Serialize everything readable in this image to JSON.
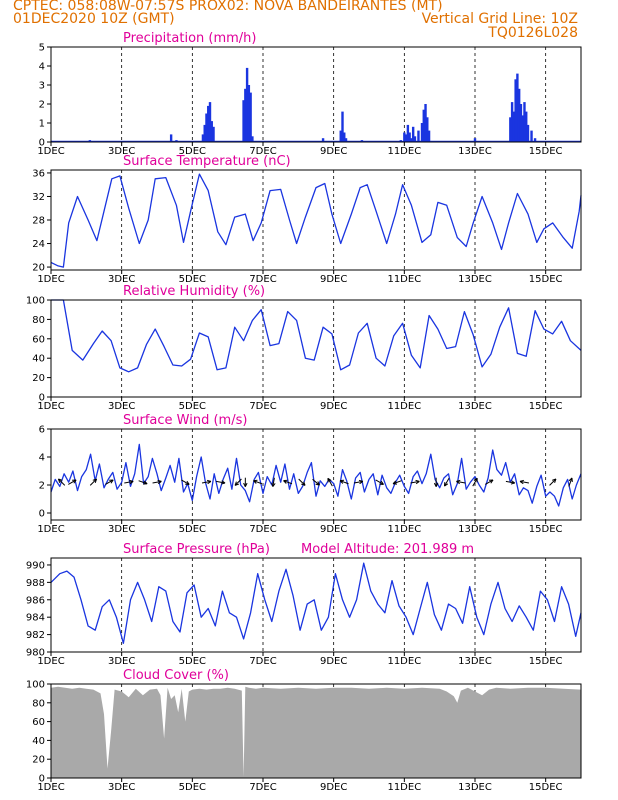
{
  "header": {
    "line1_left": "CPTEC:   058:08W-07:57S   PROX02: NOVA BANDEIRANTES (MT)",
    "line2_left": "01DEC2020 10Z (GMT)",
    "line2_right": "Vertical Grid Line: 10Z",
    "line3_right": "TQ0126L028"
  },
  "colors": {
    "header": "#e07000",
    "panel_title": "#e0009a",
    "series": "#1a35e0",
    "cloud": "#a9a9a9",
    "wind_arrow": "#000000"
  },
  "x_tick_labels": [
    "1DEC",
    "3DEC",
    "5DEC",
    "7DEC",
    "9DEC",
    "11DEC",
    "13DEC",
    "15DEC"
  ],
  "x_tick_days": [
    1,
    3,
    5,
    7,
    9,
    11,
    13,
    15
  ],
  "x_range_days": [
    1,
    16
  ],
  "model_altitude_label": "Model Altitude: 201.989 m",
  "chart_data": [
    {
      "type": "bar",
      "title": "Precipitation (mm/h)",
      "ylim": [
        0,
        5
      ],
      "yticks": [
        0,
        1,
        2,
        3,
        4,
        5
      ],
      "x": [
        1.9,
        2.1,
        2.2,
        2.4,
        4.4,
        4.55,
        5.3,
        5.35,
        5.4,
        5.45,
        5.5,
        5.55,
        5.6,
        6.45,
        6.5,
        6.55,
        6.6,
        6.65,
        6.7,
        8.7,
        9.2,
        9.25,
        9.3,
        9.35,
        9.8,
        9.9,
        10.9,
        11.0,
        11.05,
        11.1,
        11.15,
        11.2,
        11.25,
        11.3,
        11.4,
        11.5,
        11.55,
        11.6,
        11.65,
        11.7,
        13.0,
        13.1,
        14.0,
        14.05,
        14.1,
        14.15,
        14.2,
        14.25,
        14.3,
        14.35,
        14.4,
        14.45,
        14.5,
        14.6,
        14.7
      ],
      "values": [
        0.05,
        0.1,
        0.05,
        0.05,
        0.4,
        0.1,
        0.4,
        0.9,
        1.5,
        1.9,
        2.1,
        1.1,
        0.8,
        2.2,
        2.8,
        3.9,
        3.0,
        2.6,
        0.3,
        0.2,
        0.6,
        1.6,
        0.5,
        0.2,
        0.1,
        0.05,
        0.1,
        0.5,
        0.4,
        0.9,
        0.5,
        0.2,
        0.8,
        0.3,
        0.6,
        1.0,
        1.7,
        2.0,
        1.3,
        0.6,
        0.2,
        0.05,
        1.3,
        2.1,
        1.6,
        3.3,
        3.6,
        2.8,
        2.0,
        1.4,
        2.1,
        1.6,
        0.9,
        0.6,
        0.2
      ]
    },
    {
      "type": "line",
      "title": "Surface Temperature (nC)",
      "ylim": [
        19.5,
        36.5
      ],
      "yticks": [
        20,
        24,
        28,
        32,
        36
      ],
      "x": [
        1.0,
        1.2,
        1.35,
        1.5,
        1.75,
        2.05,
        2.3,
        2.5,
        2.72,
        2.95,
        3.2,
        3.5,
        3.75,
        3.95,
        4.25,
        4.55,
        4.75,
        4.95,
        5.2,
        5.45,
        5.72,
        5.95,
        6.2,
        6.5,
        6.72,
        6.95,
        7.2,
        7.5,
        7.75,
        7.95,
        8.2,
        8.5,
        8.75,
        8.95,
        9.2,
        9.5,
        9.75,
        9.95,
        10.2,
        10.5,
        10.75,
        10.95,
        11.2,
        11.5,
        11.75,
        11.95,
        12.2,
        12.5,
        12.75,
        12.95,
        13.2,
        13.5,
        13.75,
        13.95,
        14.2,
        14.5,
        14.75,
        14.95,
        15.2,
        15.5,
        15.75,
        15.95,
        16.0
      ],
      "y": [
        20.8,
        20.2,
        20.0,
        27.5,
        32.0,
        28.0,
        24.5,
        29.5,
        35.0,
        35.5,
        30.0,
        24.0,
        28.0,
        35.0,
        35.2,
        30.5,
        24.2,
        29.5,
        35.8,
        33.0,
        26.0,
        23.8,
        28.5,
        29.0,
        24.5,
        27.5,
        33.0,
        33.2,
        28.0,
        24.0,
        28.5,
        33.5,
        34.2,
        29.0,
        24.0,
        29.0,
        33.5,
        34.0,
        29.5,
        24.0,
        29.0,
        34.0,
        30.5,
        24.2,
        25.5,
        31.0,
        30.5,
        25.0,
        23.5,
        27.5,
        32.0,
        27.5,
        23.0,
        27.5,
        32.5,
        29.0,
        24.2,
        26.5,
        27.5,
        25.0,
        23.2,
        29.5,
        32.2
      ]
    },
    {
      "type": "line",
      "title": "Relative Humidity (%)",
      "ylim": [
        0,
        100
      ],
      "yticks": [
        0,
        20,
        40,
        60,
        80,
        100
      ],
      "x": [
        1.0,
        1.35,
        1.6,
        1.9,
        2.2,
        2.45,
        2.7,
        2.95,
        3.2,
        3.45,
        3.7,
        3.95,
        4.2,
        4.45,
        4.7,
        4.95,
        5.2,
        5.45,
        5.7,
        5.95,
        6.2,
        6.45,
        6.7,
        6.95,
        7.2,
        7.45,
        7.7,
        7.95,
        8.2,
        8.45,
        8.7,
        8.95,
        9.2,
        9.45,
        9.7,
        9.95,
        10.2,
        10.45,
        10.7,
        10.95,
        11.2,
        11.45,
        11.7,
        11.95,
        12.2,
        12.45,
        12.7,
        12.95,
        13.2,
        13.45,
        13.7,
        13.95,
        14.2,
        14.45,
        14.7,
        14.95,
        15.2,
        15.45,
        15.7,
        16.0
      ],
      "y": [
        100,
        100,
        48,
        38,
        55,
        68,
        58,
        30,
        26,
        30,
        54,
        70,
        52,
        33,
        32,
        39,
        66,
        62,
        28,
        30,
        72,
        58,
        79,
        90,
        53,
        55,
        88,
        79,
        40,
        38,
        72,
        65,
        28,
        33,
        66,
        76,
        40,
        32,
        63,
        76,
        43,
        30,
        84,
        70,
        50,
        52,
        88,
        64,
        31,
        44,
        72,
        92,
        45,
        42,
        89,
        70,
        65,
        78,
        58,
        48
      ]
    },
    {
      "type": "line",
      "title": "Surface Wind (m/s)",
      "ylim": [
        -0.5,
        6
      ],
      "yticks": [
        0,
        2,
        4,
        6
      ],
      "x": [
        1.0,
        1.12,
        1.25,
        1.37,
        1.5,
        1.62,
        1.75,
        1.87,
        2.0,
        2.12,
        2.25,
        2.37,
        2.5,
        2.62,
        2.75,
        2.87,
        3.0,
        3.12,
        3.25,
        3.37,
        3.5,
        3.62,
        3.75,
        3.87,
        4.0,
        4.12,
        4.25,
        4.37,
        4.5,
        4.62,
        4.75,
        4.87,
        5.0,
        5.12,
        5.25,
        5.37,
        5.5,
        5.62,
        5.75,
        5.87,
        6.0,
        6.12,
        6.25,
        6.37,
        6.5,
        6.62,
        6.75,
        6.87,
        7.0,
        7.12,
        7.25,
        7.37,
        7.5,
        7.62,
        7.75,
        7.87,
        8.0,
        8.12,
        8.25,
        8.37,
        8.5,
        8.62,
        8.75,
        8.87,
        9.0,
        9.12,
        9.25,
        9.37,
        9.5,
        9.62,
        9.75,
        9.87,
        10.0,
        10.12,
        10.25,
        10.37,
        10.5,
        10.62,
        10.75,
        10.87,
        11.0,
        11.12,
        11.25,
        11.37,
        11.5,
        11.62,
        11.75,
        11.87,
        12.0,
        12.12,
        12.25,
        12.37,
        12.5,
        12.62,
        12.75,
        12.87,
        13.0,
        13.12,
        13.25,
        13.37,
        13.5,
        13.62,
        13.75,
        13.87,
        14.0,
        14.12,
        14.25,
        14.37,
        14.5,
        14.62,
        14.75,
        14.87,
        15.0,
        15.12,
        15.25,
        15.37,
        15.5,
        15.62,
        15.75,
        15.87,
        16.0
      ],
      "y": [
        1.5,
        2.4,
        1.9,
        2.8,
        2.2,
        3.0,
        1.6,
        2.6,
        3.1,
        4.2,
        2.3,
        3.5,
        1.8,
        2.4,
        2.9,
        1.7,
        2.2,
        3.6,
        1.9,
        2.8,
        4.9,
        2.1,
        2.6,
        3.9,
        2.8,
        1.6,
        2.5,
        3.4,
        2.2,
        3.9,
        1.5,
        2.1,
        0.9,
        2.6,
        4.0,
        2.2,
        1.0,
        2.8,
        1.4,
        2.4,
        3.2,
        1.7,
        3.9,
        2.0,
        1.6,
        0.8,
        2.4,
        2.9,
        1.4,
        2.6,
        2.0,
        3.4,
        2.2,
        3.5,
        1.7,
        2.8,
        1.4,
        1.9,
        2.9,
        3.6,
        1.2,
        2.3,
        1.9,
        2.4,
        2.1,
        1.2,
        3.1,
        2.3,
        1.0,
        2.5,
        2.9,
        1.5,
        2.4,
        2.8,
        1.3,
        2.7,
        1.8,
        1.4,
        2.2,
        2.7,
        1.9,
        1.4,
        2.6,
        3.0,
        2.1,
        2.8,
        4.2,
        2.4,
        1.8,
        2.5,
        2.8,
        1.3,
        2.1,
        3.9,
        1.7,
        2.2,
        2.6,
        2.0,
        1.5,
        2.5,
        4.5,
        3.1,
        2.7,
        3.6,
        2.2,
        2.8,
        1.3,
        1.8,
        1.6,
        0.7,
        1.9,
        2.7,
        1.2,
        1.5,
        1.2,
        0.5,
        1.8,
        2.4,
        1.0,
        2.0,
        2.8
      ],
      "arrows_x": [
        1.3,
        1.6,
        2.2,
        2.65,
        3.2,
        3.6,
        4.0,
        4.8,
        5.4,
        5.8,
        6.3,
        6.5,
        6.85,
        7.3,
        7.7,
        8.1,
        8.5,
        8.9,
        9.3,
        9.7,
        10.3,
        10.8,
        11.3,
        11.9,
        12.2,
        12.6,
        13.0,
        13.4,
        14.0,
        14.4,
        15.2,
        15.7
      ],
      "arrows_deg": [
        135,
        30,
        45,
        30,
        10,
        -20,
        10,
        -30,
        10,
        -10,
        -135,
        -90,
        160,
        -100,
        160,
        -45,
        -40,
        120,
        160,
        10,
        -30,
        -160,
        10,
        -90,
        -120,
        170,
        60,
        30,
        -10,
        170,
        45,
        70
      ]
    },
    {
      "type": "line",
      "title": "Surface Pressure (hPa)",
      "ylim": [
        980,
        990.8
      ],
      "yticks": [
        980,
        982,
        984,
        986,
        988,
        990
      ],
      "x": [
        1.0,
        1.25,
        1.45,
        1.65,
        1.85,
        2.05,
        2.25,
        2.45,
        2.65,
        2.85,
        3.05,
        3.25,
        3.45,
        3.65,
        3.85,
        4.05,
        4.25,
        4.45,
        4.65,
        4.85,
        5.05,
        5.25,
        5.45,
        5.65,
        5.85,
        6.05,
        6.25,
        6.45,
        6.65,
        6.85,
        7.05,
        7.25,
        7.45,
        7.65,
        7.85,
        8.05,
        8.25,
        8.45,
        8.65,
        8.85,
        9.05,
        9.25,
        9.45,
        9.65,
        9.85,
        10.05,
        10.25,
        10.45,
        10.65,
        10.85,
        11.05,
        11.25,
        11.45,
        11.65,
        11.85,
        12.05,
        12.25,
        12.45,
        12.65,
        12.85,
        13.05,
        13.25,
        13.45,
        13.65,
        13.85,
        14.05,
        14.25,
        14.45,
        14.65,
        14.85,
        15.05,
        15.25,
        15.45,
        15.65,
        15.85,
        16.0
      ],
      "y": [
        988.0,
        989.0,
        989.3,
        988.6,
        986.0,
        983.0,
        982.5,
        985.2,
        986.0,
        984.0,
        981.0,
        986.0,
        988.0,
        986.0,
        983.5,
        987.5,
        987.0,
        983.5,
        982.3,
        986.8,
        987.7,
        984.0,
        985.0,
        983.0,
        987.0,
        984.5,
        984.0,
        981.5,
        984.5,
        989.0,
        986.0,
        983.5,
        987.0,
        989.5,
        986.5,
        982.5,
        985.5,
        986.0,
        982.5,
        984.0,
        989.0,
        986.0,
        984.0,
        986.0,
        990.2,
        987.0,
        985.5,
        984.5,
        988.2,
        985.3,
        984.0,
        982.0,
        985.0,
        988.0,
        984.3,
        982.5,
        985.5,
        985.0,
        983.3,
        987.5,
        984.0,
        982.0,
        985.5,
        988.0,
        985.0,
        983.5,
        985.3,
        984.0,
        982.5,
        987.0,
        986.0,
        983.5,
        987.5,
        985.5,
        981.8,
        984.5
      ]
    },
    {
      "type": "area",
      "title": "Cloud Cover (%)",
      "ylim": [
        0,
        100
      ],
      "yticks": [
        0,
        20,
        40,
        60,
        80,
        100
      ],
      "x": [
        1.0,
        1.2,
        1.4,
        1.6,
        1.8,
        2.0,
        2.2,
        2.4,
        2.5,
        2.6,
        2.7,
        2.8,
        3.0,
        3.2,
        3.4,
        3.6,
        3.8,
        4.0,
        4.1,
        4.2,
        4.3,
        4.4,
        4.5,
        4.6,
        4.7,
        4.8,
        4.9,
        5.0,
        5.2,
        5.4,
        5.6,
        5.8,
        6.0,
        6.2,
        6.4,
        6.45,
        6.5,
        6.6,
        6.8,
        7.0,
        7.5,
        8.0,
        8.5,
        9.0,
        9.5,
        10.0,
        10.5,
        11.0,
        11.5,
        12.0,
        12.2,
        12.4,
        12.5,
        12.6,
        12.8,
        13.0,
        13.2,
        13.4,
        13.6,
        14.0,
        14.5,
        15.0,
        15.5,
        16.0
      ],
      "values": [
        96,
        97,
        96,
        95,
        96,
        95,
        94,
        90,
        68,
        10,
        50,
        94,
        92,
        86,
        95,
        88,
        94,
        95,
        88,
        42,
        96,
        84,
        88,
        70,
        95,
        60,
        92,
        94,
        95,
        94,
        95,
        95,
        96,
        95,
        93,
        1,
        97,
        96,
        95,
        96,
        95,
        96,
        95,
        96,
        96,
        95,
        96,
        95,
        96,
        95,
        92,
        87,
        80,
        93,
        96,
        92,
        88,
        94,
        96,
        95,
        96,
        96,
        95,
        94
      ]
    }
  ]
}
